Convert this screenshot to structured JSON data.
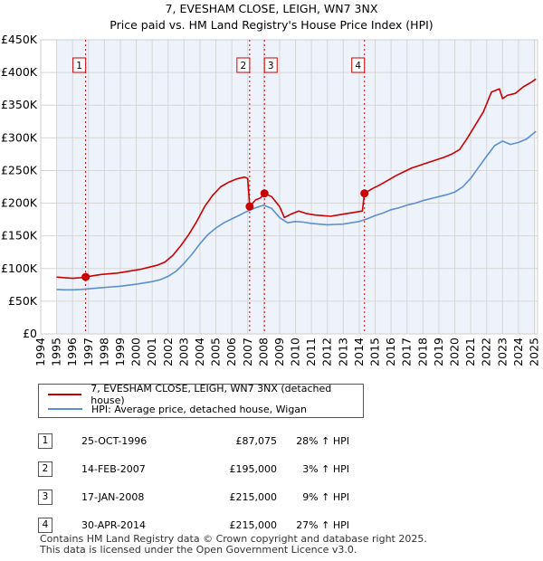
{
  "chart_data": {
    "type": "line",
    "title": "7, EVESHAM CLOSE, LEIGH, WN7 3NX",
    "subtitle": "Price paid vs. HM Land Registry's House Price Index (HPI)",
    "xlim": [
      1994,
      2025.2
    ],
    "ylim": [
      0,
      450000
    ],
    "x_ticks": [
      1994,
      1995,
      1996,
      1997,
      1998,
      1999,
      2000,
      2001,
      2002,
      2003,
      2004,
      2005,
      2006,
      2007,
      2008,
      2009,
      2010,
      2011,
      2012,
      2013,
      2014,
      2015,
      2016,
      2017,
      2018,
      2019,
      2020,
      2021,
      2022,
      2023,
      2024,
      2025
    ],
    "y_ticks": [
      0,
      50000,
      100000,
      150000,
      200000,
      250000,
      300000,
      350000,
      400000,
      450000
    ],
    "y_tick_labels": [
      "£0",
      "£50K",
      "£100K",
      "£150K",
      "£200K",
      "£250K",
      "£300K",
      "£350K",
      "£400K",
      "£450K"
    ],
    "series": [
      {
        "name": "7, EVESHAM CLOSE, LEIGH, WN7 3NX (detached house)",
        "color": "#cc0000",
        "x": [
          1995.0,
          1995.5,
          1996.0,
          1996.5,
          1996.82,
          1997.3,
          1997.8,
          1998.3,
          1998.8,
          1999.3,
          1999.8,
          2000.3,
          2000.8,
          2001.3,
          2001.8,
          2002.3,
          2002.8,
          2003.3,
          2003.8,
          2004.3,
          2004.8,
          2005.3,
          2005.8,
          2006.3,
          2006.8,
          2007.0,
          2007.12,
          2007.5,
          2007.8,
          2008.05,
          2008.5,
          2009.0,
          2009.3,
          2009.7,
          2010.2,
          2010.7,
          2011.2,
          2011.7,
          2012.2,
          2012.7,
          2013.2,
          2013.7,
          2014.2,
          2014.33,
          2014.8,
          2015.3,
          2015.8,
          2016.3,
          2016.8,
          2017.3,
          2017.8,
          2018.3,
          2018.8,
          2019.3,
          2019.8,
          2020.3,
          2020.8,
          2021.3,
          2021.8,
          2022.3,
          2022.8,
          2023.0,
          2023.3,
          2023.8,
          2024.3,
          2024.8,
          2025.1
        ],
        "values": [
          87000,
          86000,
          85000,
          86000,
          87075,
          89000,
          91000,
          92000,
          93000,
          95000,
          97000,
          99000,
          102000,
          105000,
          110000,
          120000,
          135000,
          152000,
          172000,
          195000,
          212000,
          225000,
          232000,
          237000,
          240000,
          238000,
          195000,
          205000,
          208000,
          215000,
          210000,
          195000,
          178000,
          183000,
          188000,
          184000,
          182000,
          181000,
          180000,
          182000,
          184000,
          186000,
          188000,
          215000,
          222000,
          228000,
          235000,
          242000,
          248000,
          254000,
          258000,
          262000,
          266000,
          270000,
          275000,
          282000,
          300000,
          320000,
          340000,
          370000,
          375000,
          360000,
          365000,
          368000,
          378000,
          385000,
          390000
        ]
      },
      {
        "name": "HPI: Average price, detached house, Wigan",
        "color": "#5b8fd0",
        "x": [
          1995.0,
          1995.5,
          1996.0,
          1996.5,
          1997.0,
          1997.5,
          1998.0,
          1998.5,
          1999.0,
          1999.5,
          2000.0,
          2000.5,
          2001.0,
          2001.5,
          2002.0,
          2002.5,
          2003.0,
          2003.5,
          2004.0,
          2004.5,
          2005.0,
          2005.5,
          2006.0,
          2006.5,
          2007.0,
          2007.5,
          2008.0,
          2008.5,
          2009.0,
          2009.5,
          2010.0,
          2010.5,
          2011.0,
          2011.5,
          2012.0,
          2012.5,
          2013.0,
          2013.5,
          2014.0,
          2014.5,
          2015.0,
          2015.5,
          2016.0,
          2016.5,
          2017.0,
          2017.5,
          2018.0,
          2018.5,
          2019.0,
          2019.5,
          2020.0,
          2020.5,
          2021.0,
          2021.5,
          2022.0,
          2022.5,
          2023.0,
          2023.5,
          2024.0,
          2024.5,
          2025.1
        ],
        "values": [
          68000,
          67500,
          67500,
          68000,
          69000,
          70000,
          71000,
          72000,
          73000,
          74500,
          76000,
          78000,
          80000,
          83000,
          88000,
          96000,
          108000,
          122000,
          138000,
          152000,
          162000,
          170000,
          176000,
          182000,
          188000,
          193000,
          197000,
          192000,
          178000,
          170000,
          172000,
          171000,
          169000,
          168000,
          167000,
          167500,
          168000,
          170000,
          172000,
          176000,
          181000,
          185000,
          190000,
          193000,
          197000,
          200000,
          204000,
          207000,
          210000,
          213000,
          217000,
          225000,
          238000,
          255000,
          272000,
          288000,
          295000,
          290000,
          293000,
          298000,
          310000
        ]
      }
    ],
    "sales": [
      {
        "id": "1",
        "x": 1996.82,
        "price": 87075
      },
      {
        "id": "2",
        "x": 2007.12,
        "price": 195000
      },
      {
        "id": "3",
        "x": 2008.05,
        "price": 215000
      },
      {
        "id": "4",
        "x": 2014.33,
        "price": 215000
      }
    ],
    "shaded_span": [
      1995.0,
      2025.1
    ]
  },
  "legend": {
    "items": [
      {
        "label": "7, EVESHAM CLOSE, LEIGH, WN7 3NX (detached house)",
        "color": "#cc0000"
      },
      {
        "label": "HPI: Average price, detached house, Wigan",
        "color": "#5b8fd0"
      }
    ]
  },
  "table": {
    "rows": [
      {
        "num": "1",
        "date": "25-OCT-1996",
        "price": "£87,075",
        "hpi": "28% ↑ HPI"
      },
      {
        "num": "2",
        "date": "14-FEB-2007",
        "price": "£195,000",
        "hpi": "3% ↑ HPI"
      },
      {
        "num": "3",
        "date": "17-JAN-2008",
        "price": "£215,000",
        "hpi": "9% ↑ HPI"
      },
      {
        "num": "4",
        "date": "30-APR-2014",
        "price": "£215,000",
        "hpi": "27% ↑ HPI"
      }
    ]
  },
  "footer": {
    "line1": "Contains HM Land Registry data © Crown copyright and database right 2025.",
    "line2": "This data is licensed under the Open Government Licence v3.0."
  }
}
